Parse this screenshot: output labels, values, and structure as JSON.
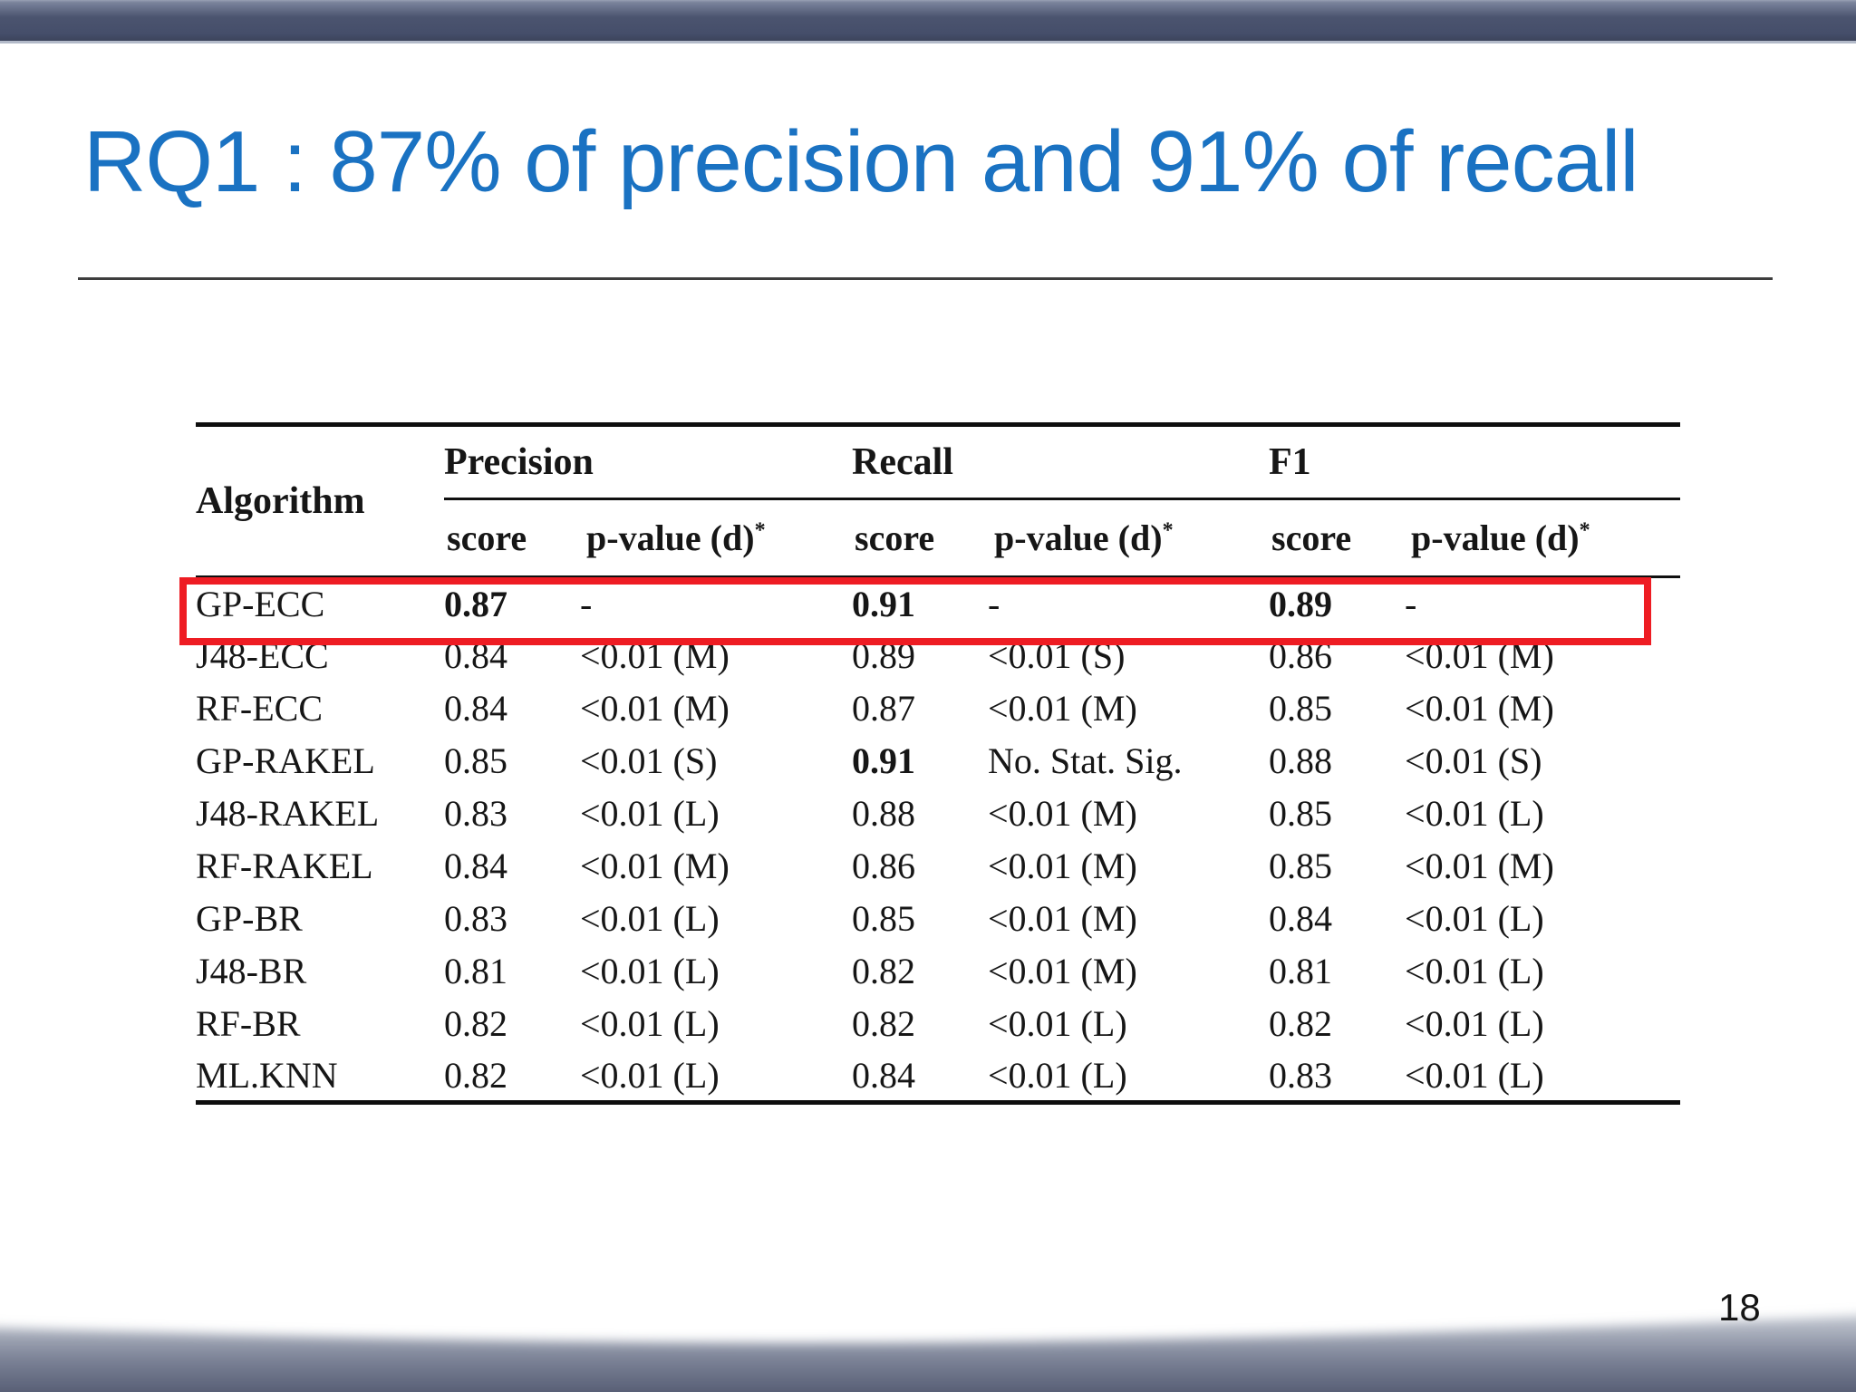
{
  "slide": {
    "title": "RQ1 : 87% of precision and 91% of recall",
    "page_number": "18"
  },
  "results_table": {
    "corner_header": "Algorithm",
    "column_groups": [
      "Precision",
      "Recall",
      "F1"
    ],
    "sub_header_score": "score",
    "sub_header_pvalue": "p-value (d)",
    "sub_header_star": "*",
    "rows": [
      {
        "algorithm": "GP-ECC",
        "highlight": true,
        "values": [
          {
            "text": "0.87",
            "bold": true
          },
          {
            "text": "-",
            "bold": false
          },
          {
            "text": "0.91",
            "bold": true
          },
          {
            "text": "-",
            "bold": false
          },
          {
            "text": "0.89",
            "bold": true
          },
          {
            "text": "-",
            "bold": false
          }
        ]
      },
      {
        "algorithm": "J48-ECC",
        "highlight": false,
        "values": [
          {
            "text": "0.84",
            "bold": false
          },
          {
            "text": "<0.01 (M)",
            "bold": false
          },
          {
            "text": "0.89",
            "bold": false
          },
          {
            "text": "<0.01 (S)",
            "bold": false
          },
          {
            "text": "0.86",
            "bold": false
          },
          {
            "text": "<0.01 (M)",
            "bold": false
          }
        ]
      },
      {
        "algorithm": "RF-ECC",
        "highlight": false,
        "values": [
          {
            "text": "0.84",
            "bold": false
          },
          {
            "text": "<0.01 (M)",
            "bold": false
          },
          {
            "text": "0.87",
            "bold": false
          },
          {
            "text": "<0.01 (M)",
            "bold": false
          },
          {
            "text": "0.85",
            "bold": false
          },
          {
            "text": "<0.01 (M)",
            "bold": false
          }
        ]
      },
      {
        "algorithm": "GP-RAKEL",
        "highlight": false,
        "values": [
          {
            "text": "0.85",
            "bold": false
          },
          {
            "text": "<0.01 (S)",
            "bold": false
          },
          {
            "text": "0.91",
            "bold": true
          },
          {
            "text": "No. Stat. Sig.",
            "bold": false
          },
          {
            "text": "0.88",
            "bold": false
          },
          {
            "text": "<0.01 (S)",
            "bold": false
          }
        ]
      },
      {
        "algorithm": "J48-RAKEL",
        "highlight": false,
        "values": [
          {
            "text": "0.83",
            "bold": false
          },
          {
            "text": "<0.01 (L)",
            "bold": false
          },
          {
            "text": "0.88",
            "bold": false
          },
          {
            "text": "<0.01 (M)",
            "bold": false
          },
          {
            "text": "0.85",
            "bold": false
          },
          {
            "text": "<0.01 (L)",
            "bold": false
          }
        ]
      },
      {
        "algorithm": "RF-RAKEL",
        "highlight": false,
        "values": [
          {
            "text": "0.84",
            "bold": false
          },
          {
            "text": "<0.01 (M)",
            "bold": false
          },
          {
            "text": "0.86",
            "bold": false
          },
          {
            "text": "<0.01 (M)",
            "bold": false
          },
          {
            "text": "0.85",
            "bold": false
          },
          {
            "text": "<0.01 (M)",
            "bold": false
          }
        ]
      },
      {
        "algorithm": "GP-BR",
        "highlight": false,
        "values": [
          {
            "text": "0.83",
            "bold": false
          },
          {
            "text": "<0.01 (L)",
            "bold": false
          },
          {
            "text": "0.85",
            "bold": false
          },
          {
            "text": "<0.01 (M)",
            "bold": false
          },
          {
            "text": "0.84",
            "bold": false
          },
          {
            "text": "<0.01 (L)",
            "bold": false
          }
        ]
      },
      {
        "algorithm": "J48-BR",
        "highlight": false,
        "values": [
          {
            "text": "0.81",
            "bold": false
          },
          {
            "text": "<0.01 (L)",
            "bold": false
          },
          {
            "text": "0.82",
            "bold": false
          },
          {
            "text": "<0.01 (M)",
            "bold": false
          },
          {
            "text": "0.81",
            "bold": false
          },
          {
            "text": "<0.01 (L)",
            "bold": false
          }
        ]
      },
      {
        "algorithm": "RF-BR",
        "highlight": false,
        "values": [
          {
            "text": "0.82",
            "bold": false
          },
          {
            "text": "<0.01 (L)",
            "bold": false
          },
          {
            "text": "0.82",
            "bold": false
          },
          {
            "text": "<0.01 (L)",
            "bold": false
          },
          {
            "text": "0.82",
            "bold": false
          },
          {
            "text": "<0.01 (L)",
            "bold": false
          }
        ]
      },
      {
        "algorithm": "ML.KNN",
        "highlight": false,
        "values": [
          {
            "text": "0.82",
            "bold": false
          },
          {
            "text": "<0.01 (L)",
            "bold": false
          },
          {
            "text": "0.84",
            "bold": false
          },
          {
            "text": "<0.01 (L)",
            "bold": false
          },
          {
            "text": "0.83",
            "bold": false
          },
          {
            "text": "<0.01 (L)",
            "bold": false
          }
        ]
      }
    ]
  },
  "colors": {
    "title_blue": "#1a72c2",
    "top_bar": "#4b546f",
    "highlight_red": "#ee1c23",
    "wave_dark": "#454c64",
    "table_text": "#161616"
  }
}
